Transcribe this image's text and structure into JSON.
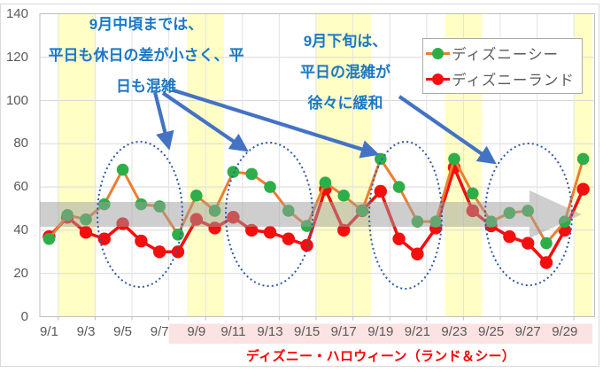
{
  "chart_data": {
    "type": "line",
    "title": "",
    "categories": [
      "9/1",
      "9/2",
      "9/3",
      "9/4",
      "9/5",
      "9/6",
      "9/7",
      "9/8",
      "9/9",
      "9/10",
      "9/11",
      "9/12",
      "9/13",
      "9/14",
      "9/15",
      "9/16",
      "9/17",
      "9/18",
      "9/19",
      "9/20",
      "9/21",
      "9/22",
      "9/23",
      "9/24",
      "9/25",
      "9/26",
      "9/27",
      "9/28",
      "9/29",
      "9/30"
    ],
    "x_tick_labels": [
      "9/1",
      "9/3",
      "9/5",
      "9/7",
      "9/9",
      "9/11",
      "9/13",
      "9/15",
      "9/17",
      "9/19",
      "9/21",
      "9/23",
      "9/25",
      "9/27",
      "9/29"
    ],
    "y_ticks": [
      0,
      20,
      40,
      60,
      80,
      100,
      120,
      140
    ],
    "ylim": [
      0,
      140
    ],
    "grid": true,
    "legend_position": "top-right",
    "series": [
      {
        "name": "ディズニーシー",
        "line_color": "#EE7D2F",
        "marker_color": "#2EAE48",
        "values": [
          36,
          47,
          45,
          52,
          68,
          52,
          51,
          38,
          56,
          49,
          67,
          66,
          60,
          49,
          42,
          62,
          56,
          49,
          73,
          60,
          44,
          44,
          73,
          57,
          44,
          48,
          49,
          34,
          44,
          73
        ]
      },
      {
        "name": "ディズニーランド",
        "line_color": "#F50E0E",
        "marker_color": "#F50E0E",
        "values": [
          37,
          46,
          39,
          36,
          43,
          35,
          30,
          30,
          45,
          41,
          46,
          40,
          39,
          36,
          33,
          59,
          40,
          49,
          58,
          36,
          29,
          41,
          69,
          49,
          42,
          37,
          34,
          25,
          40,
          59
        ]
      }
    ],
    "weekend_highlight_days": [
      [
        2,
        3
      ],
      [
        9,
        10
      ],
      [
        16,
        18
      ],
      [
        23,
        24
      ],
      [
        30,
        30
      ]
    ],
    "event_label_band_days": [
      8,
      30
    ],
    "trend_arrow_value_range": [
      42,
      53
    ],
    "highlight_ellipse_day_ranges": [
      [
        4,
        8
      ],
      [
        11,
        15
      ],
      [
        19,
        22
      ],
      [
        26,
        29
      ]
    ]
  },
  "annotations": {
    "midmonth": {
      "lines": [
        "9月中頃までは、",
        "平日も休日の差が小さく、平",
        "日も混雑"
      ]
    },
    "latemonth": {
      "lines": [
        "9月下旬は、",
        "平日の混雑が",
        "徐々に緩和"
      ]
    }
  },
  "legend": {
    "items": [
      {
        "label": "ディズニーシー"
      },
      {
        "label": "ディズニーランド"
      }
    ]
  },
  "caption": "ディズニー・ハロウィーン（ランド＆シー）",
  "colors": {
    "weekend_band": "#FFFFC5",
    "event_band": "#FBE3E3",
    "annotation_text": "#1B78C6",
    "annotation_arrow": "#4472C4",
    "highlight_ellipse": "#2E5AA6",
    "trend_arrow": "#9E9E9E",
    "caption_text": "#FF0000",
    "axis_label": "#595959",
    "legend_text": "#595959",
    "gridline": "#D9D9D9",
    "plot_border": "#BFBFBF"
  }
}
